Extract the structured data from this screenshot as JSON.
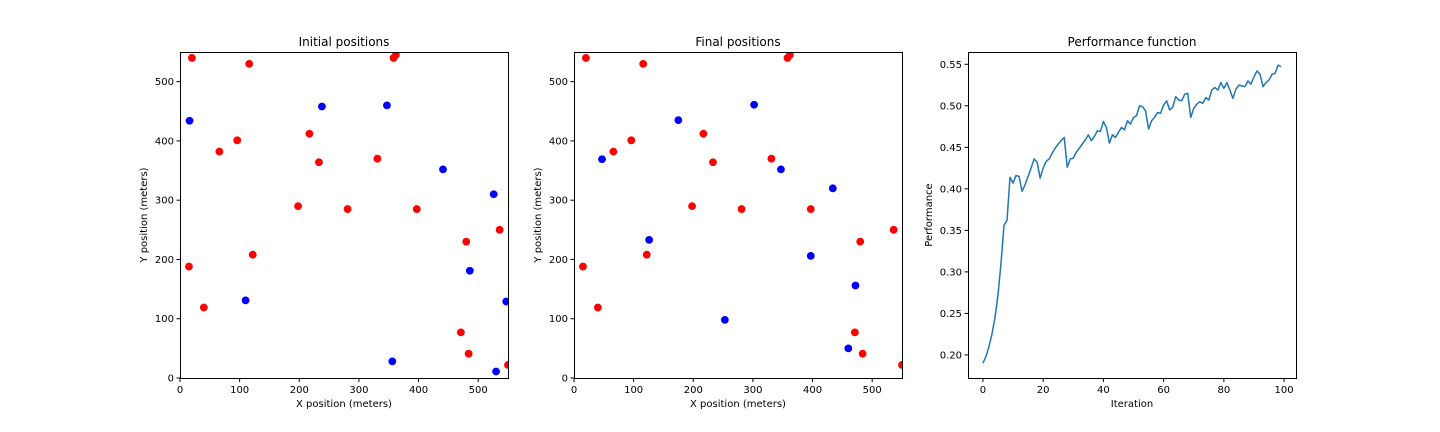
{
  "chart_data": [
    {
      "type": "scatter",
      "title": "Initial positions",
      "xlabel": "X position (meters)",
      "ylabel": "Y position (meters)",
      "xlim": [
        0,
        550
      ],
      "ylim": [
        0,
        550
      ],
      "xticks": [
        0,
        100,
        200,
        300,
        400,
        500
      ],
      "yticks": [
        0,
        100,
        200,
        300,
        400,
        500
      ],
      "grid": false,
      "series": [
        {
          "color": "#ff0000",
          "points": [
            [
              20,
              540
            ],
            [
              116,
              530
            ],
            [
              358,
              540
            ],
            [
              362,
              545
            ],
            [
              96,
              401
            ],
            [
              66,
              382
            ],
            [
              217,
              412
            ],
            [
              233,
              364
            ],
            [
              331,
              370
            ],
            [
              198,
              290
            ],
            [
              281,
              285
            ],
            [
              397,
              285
            ],
            [
              480,
              230
            ],
            [
              536,
              250
            ],
            [
              15,
              188
            ],
            [
              122,
              208
            ],
            [
              40,
              119
            ],
            [
              471,
              77
            ],
            [
              484,
              41
            ],
            [
              550,
              22
            ]
          ]
        },
        {
          "color": "#0000ff",
          "points": [
            [
              16,
              434
            ],
            [
              238,
              458
            ],
            [
              347,
              460
            ],
            [
              441,
              352
            ],
            [
              526,
              310
            ],
            [
              486,
              181
            ],
            [
              547,
              129
            ],
            [
              110,
              131
            ],
            [
              356,
              28
            ],
            [
              530,
              11
            ]
          ]
        }
      ]
    },
    {
      "type": "scatter",
      "title": "Final positions",
      "xlabel": "X position (meters)",
      "ylabel": "Y position (meters)",
      "xlim": [
        0,
        550
      ],
      "ylim": [
        0,
        550
      ],
      "xticks": [
        0,
        100,
        200,
        300,
        400,
        500
      ],
      "yticks": [
        0,
        100,
        200,
        300,
        400,
        500
      ],
      "grid": false,
      "series": [
        {
          "color": "#ff0000",
          "points": [
            [
              20,
              540
            ],
            [
              116,
              530
            ],
            [
              358,
              540
            ],
            [
              362,
              545
            ],
            [
              96,
              401
            ],
            [
              66,
              382
            ],
            [
              217,
              412
            ],
            [
              233,
              364
            ],
            [
              331,
              370
            ],
            [
              198,
              290
            ],
            [
              281,
              285
            ],
            [
              397,
              285
            ],
            [
              480,
              230
            ],
            [
              536,
              250
            ],
            [
              15,
              188
            ],
            [
              122,
              208
            ],
            [
              40,
              119
            ],
            [
              471,
              77
            ],
            [
              484,
              41
            ],
            [
              550,
              22
            ]
          ]
        },
        {
          "color": "#0000ff",
          "points": [
            [
              47,
              369
            ],
            [
              175,
              435
            ],
            [
              302,
              461
            ],
            [
              347,
              352
            ],
            [
              434,
              320
            ],
            [
              126,
              233
            ],
            [
              397,
              206
            ],
            [
              472,
              156
            ],
            [
              253,
              98
            ],
            [
              460,
              50
            ]
          ]
        }
      ]
    },
    {
      "type": "line",
      "title": "Performance function",
      "xlabel": "Iteration",
      "ylabel": "Performance",
      "xlim": [
        -4.95,
        103.95
      ],
      "ylim": [
        0.1722,
        0.5648
      ],
      "xticks": [
        0,
        20,
        40,
        60,
        80,
        100
      ],
      "yticks": [
        0.2,
        0.25,
        0.3,
        0.35,
        0.4,
        0.45,
        0.5,
        0.55
      ],
      "grid": false,
      "series": [
        {
          "color": "#1f77b4",
          "x": [
            0,
            1,
            2,
            3,
            4,
            5,
            6,
            7,
            8,
            9,
            10,
            11,
            12,
            13,
            14,
            15,
            16,
            17,
            18,
            19,
            20,
            21,
            22,
            23,
            24,
            25,
            26,
            27,
            28,
            29,
            30,
            31,
            32,
            33,
            34,
            35,
            36,
            37,
            38,
            39,
            40,
            41,
            42,
            43,
            44,
            45,
            46,
            47,
            48,
            49,
            50,
            51,
            52,
            53,
            54,
            55,
            56,
            57,
            58,
            59,
            60,
            61,
            62,
            63,
            64,
            65,
            66,
            67,
            68,
            69,
            70,
            71,
            72,
            73,
            74,
            75,
            76,
            77,
            78,
            79,
            80,
            81,
            82,
            83,
            84,
            85,
            86,
            87,
            88,
            89,
            90,
            91,
            92,
            93,
            94,
            95,
            96,
            97,
            98,
            99
          ],
          "values": [
            0.19,
            0.198,
            0.21,
            0.225,
            0.245,
            0.272,
            0.31,
            0.356,
            0.362,
            0.414,
            0.407,
            0.416,
            0.415,
            0.397,
            0.405,
            0.415,
            0.425,
            0.436,
            0.432,
            0.413,
            0.425,
            0.433,
            0.436,
            0.443,
            0.449,
            0.454,
            0.458,
            0.462,
            0.426,
            0.436,
            0.437,
            0.444,
            0.449,
            0.454,
            0.459,
            0.465,
            0.458,
            0.463,
            0.47,
            0.469,
            0.481,
            0.474,
            0.455,
            0.465,
            0.462,
            0.468,
            0.474,
            0.471,
            0.482,
            0.478,
            0.486,
            0.488,
            0.5,
            0.499,
            0.494,
            0.472,
            0.482,
            0.486,
            0.492,
            0.491,
            0.501,
            0.506,
            0.495,
            0.498,
            0.511,
            0.507,
            0.506,
            0.514,
            0.515,
            0.486,
            0.497,
            0.502,
            0.505,
            0.503,
            0.51,
            0.507,
            0.519,
            0.522,
            0.519,
            0.528,
            0.521,
            0.528,
            0.519,
            0.509,
            0.52,
            0.525,
            0.524,
            0.523,
            0.53,
            0.526,
            0.535,
            0.542,
            0.538,
            0.523,
            0.528,
            0.531,
            0.538,
            0.539,
            0.549,
            0.547
          ]
        }
      ]
    }
  ]
}
